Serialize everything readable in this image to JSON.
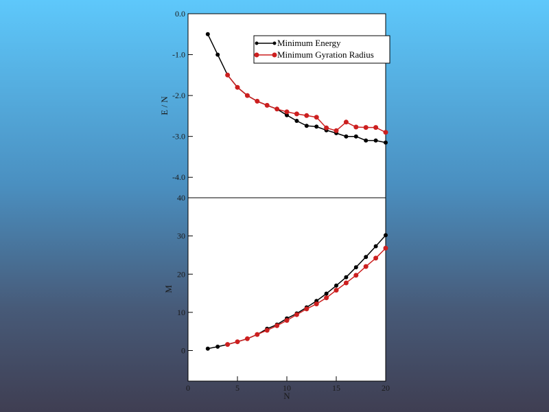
{
  "chart_data": [
    {
      "type": "line",
      "title": "",
      "xlabel": "",
      "ylabel": "E / N",
      "xlim": [
        0,
        20
      ],
      "ylim": [
        -4.5,
        0.0
      ],
      "yticks": [
        0.0,
        -1.0,
        -2.0,
        -3.0,
        -4.0
      ],
      "ytick_labels": [
        "0.0",
        "-1.0",
        "-2.0",
        "-3.0",
        "-4.0"
      ],
      "legend_position": "top-right",
      "series": [
        {
          "name": "Minimum Energy",
          "color": "#000000",
          "x": [
            2,
            3,
            4,
            5,
            6,
            7,
            8,
            9,
            10,
            11,
            12,
            13,
            14,
            15,
            16,
            17,
            18,
            19,
            20
          ],
          "y": [
            -0.5,
            -1.0,
            -1.5,
            -1.8,
            -2.0,
            -2.14,
            -2.24,
            -2.33,
            -2.48,
            -2.62,
            -2.74,
            -2.76,
            -2.85,
            -2.92,
            -3.0,
            -3.0,
            -3.1,
            -3.1,
            -3.15
          ]
        },
        {
          "name": "Minimum Gyration Radius",
          "color": "#cc1f1f",
          "x": [
            4,
            5,
            6,
            7,
            8,
            9,
            10,
            11,
            12,
            13,
            14,
            15,
            16,
            17,
            18,
            19,
            20
          ],
          "y": [
            -1.5,
            -1.8,
            -2.0,
            -2.14,
            -2.24,
            -2.33,
            -2.4,
            -2.45,
            -2.49,
            -2.53,
            -2.79,
            -2.86,
            -2.65,
            -2.77,
            -2.78,
            -2.78,
            -2.9
          ]
        }
      ]
    },
    {
      "type": "line",
      "title": "",
      "xlabel": "N",
      "ylabel": "M",
      "xlim": [
        0,
        20
      ],
      "ylim": [
        -8,
        40
      ],
      "xticks": [
        0,
        5,
        10,
        15,
        20
      ],
      "xtick_labels": [
        "0",
        "5",
        "10",
        "15",
        "20"
      ],
      "yticks": [
        0,
        10,
        20,
        30,
        40
      ],
      "ytick_labels": [
        "0",
        "10",
        "20",
        "30",
        "40"
      ],
      "series": [
        {
          "name": "Minimum Energy",
          "color": "#000000",
          "x": [
            2,
            3,
            4,
            5,
            6,
            7,
            8,
            9,
            10,
            11,
            12,
            13,
            14,
            15,
            16,
            17,
            18,
            19,
            20
          ],
          "y": [
            0.5,
            1.0,
            1.6,
            2.3,
            3.1,
            4.2,
            5.7,
            6.8,
            8.4,
            9.7,
            11.3,
            13.0,
            14.9,
            17.0,
            19.2,
            21.8,
            24.5,
            27.3,
            30.2
          ]
        },
        {
          "name": "Minimum Gyration Radius",
          "color": "#cc1f1f",
          "x": [
            4,
            5,
            6,
            7,
            8,
            9,
            10,
            11,
            12,
            13,
            14,
            15,
            16,
            17,
            18,
            19,
            20
          ],
          "y": [
            1.6,
            2.3,
            3.1,
            4.2,
            5.3,
            6.5,
            7.9,
            9.4,
            10.9,
            12.2,
            13.8,
            15.8,
            17.7,
            19.7,
            22.0,
            24.2,
            26.8
          ]
        }
      ]
    }
  ]
}
